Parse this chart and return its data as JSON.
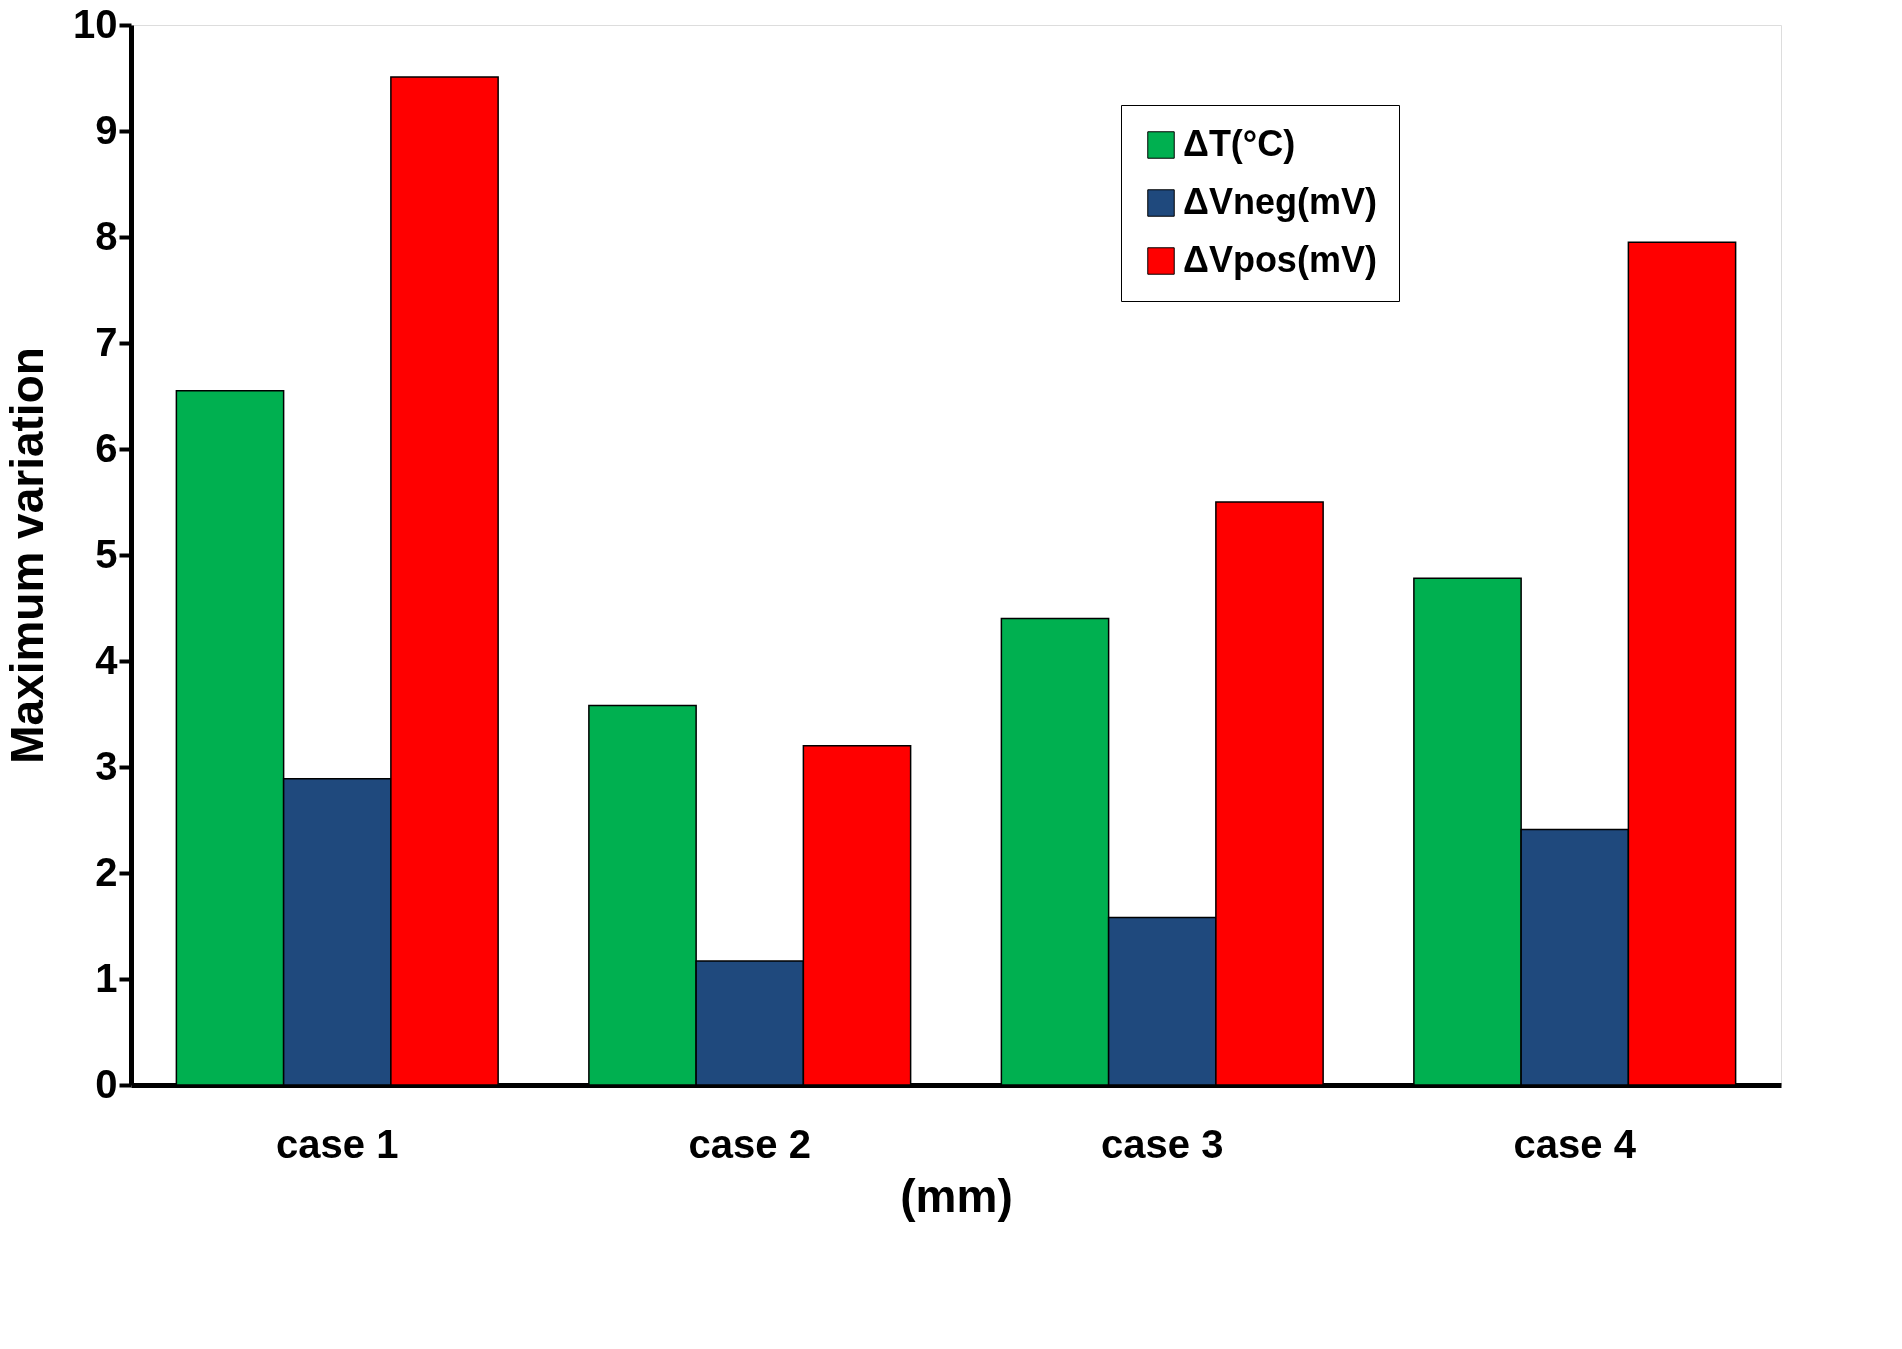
{
  "chart_data": {
    "type": "bar",
    "xlabel": "(mm)",
    "ylabel": "Maximum variation",
    "categories": [
      "case 1",
      "case 2",
      "case 3",
      "case 4"
    ],
    "series": [
      {
        "name": "ΔT(°C)",
        "color": "#00b050",
        "values": [
          6.55,
          3.58,
          4.4,
          4.78
        ]
      },
      {
        "name": "ΔVneg(mV)",
        "color": "#1f497d",
        "values": [
          2.89,
          1.17,
          1.58,
          2.41
        ]
      },
      {
        "name": "ΔVpos(mV)",
        "color": "#ff0000",
        "values": [
          9.51,
          3.2,
          5.5,
          7.95
        ]
      }
    ],
    "ylim": [
      0,
      10
    ],
    "yticks": [
      0,
      1,
      2,
      3,
      4,
      5,
      6,
      7,
      8,
      9,
      10
    ],
    "grid": false,
    "legend": "top right"
  }
}
